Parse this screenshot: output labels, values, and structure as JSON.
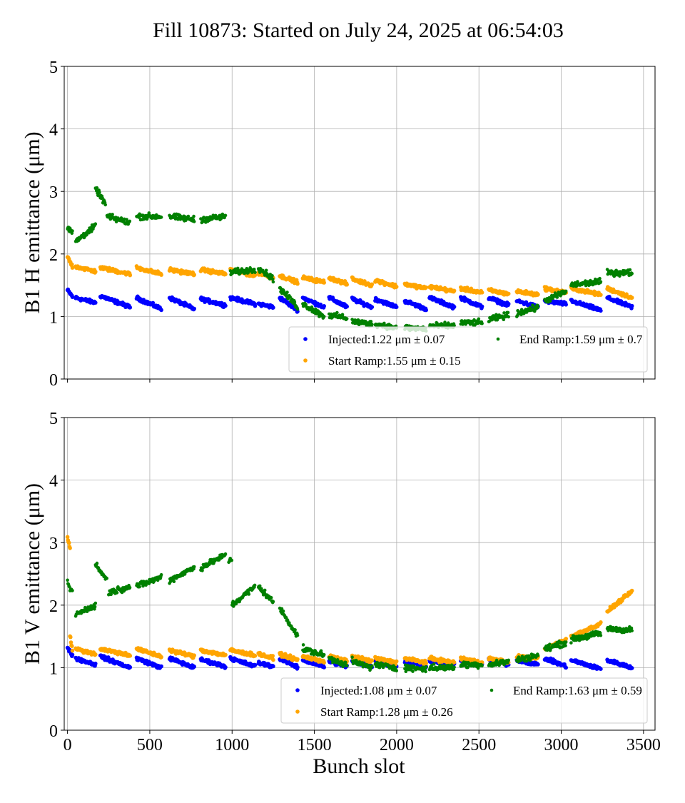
{
  "figure": {
    "title": "Fill 10873: Started on July 24, 2025 at 06:54:03",
    "xlabel": "Bunch slot"
  },
  "colors": {
    "injected": "#0000ff",
    "start_ramp": "#ffa500",
    "end_ramp": "#008000",
    "grid": "#b0b0b0"
  },
  "chart_data": [
    {
      "type": "scatter",
      "ylabel": "B1 H emittance (μm)",
      "xlabel": "",
      "xlim": [
        -20,
        3570
      ],
      "ylim": [
        0,
        5
      ],
      "xticks": [
        0,
        500,
        1000,
        1500,
        2000,
        2500,
        3000,
        3500
      ],
      "yticks": [
        0,
        1,
        2,
        3,
        4,
        5
      ],
      "show_xtick_labels": false,
      "grid": true,
      "legend": "lower-right",
      "series": [
        {
          "name": "Injected:1.22 μm ± 0.07",
          "color": "#0000ff",
          "trains": [
            [
              0,
              30,
              1.42,
              1.32
            ],
            [
              50,
              170,
              1.3,
              1.22
            ],
            [
              200,
              380,
              1.33,
              1.15
            ],
            [
              420,
              570,
              1.3,
              1.12
            ],
            [
              620,
              770,
              1.3,
              1.12
            ],
            [
              810,
              960,
              1.28,
              1.18
            ],
            [
              990,
              1140,
              1.3,
              1.2
            ],
            [
              1160,
              1250,
              1.2,
              1.15
            ],
            [
              1290,
              1400,
              1.3,
              1.1
            ],
            [
              1430,
              1560,
              1.3,
              1.15
            ],
            [
              1590,
              1700,
              1.3,
              1.15
            ],
            [
              1730,
              1850,
              1.28,
              1.15
            ],
            [
              1870,
              2000,
              1.28,
              1.15
            ],
            [
              2050,
              2180,
              1.25,
              1.12
            ],
            [
              2200,
              2350,
              1.3,
              1.15
            ],
            [
              2390,
              2520,
              1.3,
              1.15
            ],
            [
              2560,
              2680,
              1.3,
              1.18
            ],
            [
              2730,
              2860,
              1.25,
              1.15
            ],
            [
              2900,
              3030,
              1.25,
              1.2
            ],
            [
              3060,
              3240,
              1.25,
              1.1
            ],
            [
              3280,
              3430,
              1.3,
              1.15
            ]
          ]
        },
        {
          "name": "Start Ramp:1.55 μm ± 0.15",
          "color": "#ffa500",
          "trains": [
            [
              0,
              30,
              1.95,
              1.8
            ],
            [
              50,
              170,
              1.8,
              1.72
            ],
            [
              200,
              380,
              1.78,
              1.68
            ],
            [
              420,
              570,
              1.78,
              1.68
            ],
            [
              620,
              770,
              1.75,
              1.68
            ],
            [
              810,
              960,
              1.75,
              1.68
            ],
            [
              990,
              1140,
              1.75,
              1.65
            ],
            [
              1160,
              1250,
              1.7,
              1.62
            ],
            [
              1290,
              1400,
              1.65,
              1.55
            ],
            [
              1430,
              1560,
              1.62,
              1.55
            ],
            [
              1590,
              1700,
              1.62,
              1.52
            ],
            [
              1730,
              1850,
              1.6,
              1.5
            ],
            [
              1870,
              2000,
              1.58,
              1.48
            ],
            [
              2050,
              2180,
              1.52,
              1.45
            ],
            [
              2200,
              2350,
              1.48,
              1.4
            ],
            [
              2390,
              2520,
              1.45,
              1.38
            ],
            [
              2560,
              2680,
              1.42,
              1.36
            ],
            [
              2730,
              2860,
              1.4,
              1.35
            ],
            [
              2900,
              3030,
              1.45,
              1.38
            ],
            [
              3060,
              3240,
              1.45,
              1.35
            ],
            [
              3280,
              3430,
              1.45,
              1.3
            ]
          ]
        },
        {
          "name": "End Ramp:1.59 μm ± 0.7",
          "color": "#008000",
          "trains": [
            [
              0,
              30,
              2.4,
              2.35
            ],
            [
              50,
              170,
              2.2,
              2.45
            ],
            [
              170,
              230,
              3.05,
              2.8
            ],
            [
              240,
              380,
              2.6,
              2.5
            ],
            [
              420,
              570,
              2.6,
              2.6
            ],
            [
              620,
              770,
              2.6,
              2.55
            ],
            [
              810,
              960,
              2.55,
              2.6
            ],
            [
              990,
              1140,
              1.7,
              1.75
            ],
            [
              1160,
              1250,
              1.78,
              1.6
            ],
            [
              1290,
              1400,
              1.45,
              1.15
            ],
            [
              1430,
              1560,
              1.2,
              1.0
            ],
            [
              1590,
              1700,
              1.02,
              0.98
            ],
            [
              1730,
              1850,
              0.92,
              0.88
            ],
            [
              1870,
              2000,
              0.88,
              0.82
            ],
            [
              2050,
              2180,
              0.82,
              0.8
            ],
            [
              2200,
              2350,
              0.85,
              0.85
            ],
            [
              2390,
              2520,
              0.9,
              0.9
            ],
            [
              2560,
              2680,
              0.95,
              1.02
            ],
            [
              2730,
              2860,
              1.05,
              1.15
            ],
            [
              2900,
              3030,
              1.25,
              1.4
            ],
            [
              3060,
              3240,
              1.5,
              1.56
            ],
            [
              3280,
              3430,
              1.7,
              1.7
            ]
          ]
        }
      ]
    },
    {
      "type": "scatter",
      "ylabel": "B1 V emittance (μm)",
      "xlabel": "Bunch slot",
      "xlim": [
        -20,
        3570
      ],
      "ylim": [
        0,
        5
      ],
      "xticks": [
        0,
        500,
        1000,
        1500,
        2000,
        2500,
        3000,
        3500
      ],
      "yticks": [
        0,
        1,
        2,
        3,
        4,
        5
      ],
      "show_xtick_labels": true,
      "grid": true,
      "legend": "lower-right",
      "series": [
        {
          "name": "Injected:1.08 μm ± 0.07",
          "color": "#0000ff",
          "trains": [
            [
              0,
              30,
              1.32,
              1.2
            ],
            [
              50,
              170,
              1.15,
              1.05
            ],
            [
              200,
              380,
              1.18,
              1.0
            ],
            [
              420,
              570,
              1.15,
              1.0
            ],
            [
              620,
              770,
              1.15,
              1.0
            ],
            [
              810,
              960,
              1.13,
              1.02
            ],
            [
              990,
              1140,
              1.15,
              1.02
            ],
            [
              1160,
              1250,
              1.08,
              1.02
            ],
            [
              1290,
              1400,
              1.15,
              1.0
            ],
            [
              1430,
              1560,
              1.12,
              1.02
            ],
            [
              1590,
              1700,
              1.1,
              1.02
            ],
            [
              1730,
              1850,
              1.1,
              1.02
            ],
            [
              1870,
              2000,
              1.1,
              1.02
            ],
            [
              2050,
              2180,
              1.1,
              1.02
            ],
            [
              2200,
              2350,
              1.12,
              1.05
            ],
            [
              2390,
              2520,
              1.12,
              1.05
            ],
            [
              2560,
              2680,
              1.12,
              1.05
            ],
            [
              2730,
              2860,
              1.12,
              1.05
            ],
            [
              2900,
              3030,
              1.15,
              1.02
            ],
            [
              3060,
              3240,
              1.12,
              0.98
            ],
            [
              3280,
              3430,
              1.12,
              1.0
            ]
          ]
        },
        {
          "name": "Start Ramp:1.28 μm ± 0.26",
          "color": "#ffa500",
          "trains": [
            [
              0,
              15,
              3.1,
              2.9
            ],
            [
              15,
              30,
              1.5,
              1.3
            ],
            [
              50,
              170,
              1.3,
              1.22
            ],
            [
              200,
              380,
              1.3,
              1.2
            ],
            [
              420,
              570,
              1.3,
              1.18
            ],
            [
              620,
              770,
              1.28,
              1.18
            ],
            [
              810,
              960,
              1.28,
              1.2
            ],
            [
              990,
              1140,
              1.28,
              1.2
            ],
            [
              1160,
              1250,
              1.22,
              1.15
            ],
            [
              1290,
              1400,
              1.22,
              1.12
            ],
            [
              1430,
              1560,
              1.18,
              1.1
            ],
            [
              1590,
              1700,
              1.18,
              1.1
            ],
            [
              1730,
              1850,
              1.18,
              1.1
            ],
            [
              1870,
              2000,
              1.15,
              1.08
            ],
            [
              2050,
              2180,
              1.15,
              1.08
            ],
            [
              2200,
              2350,
              1.15,
              1.08
            ],
            [
              2390,
              2520,
              1.15,
              1.08
            ],
            [
              2560,
              2680,
              1.15,
              1.08
            ],
            [
              2730,
              2860,
              1.18,
              1.15
            ],
            [
              2900,
              3030,
              1.3,
              1.45
            ],
            [
              3060,
              3240,
              1.5,
              1.7
            ],
            [
              3280,
              3430,
              1.9,
              2.22
            ]
          ]
        },
        {
          "name": "End Ramp:1.63 μm ± 0.59",
          "color": "#008000",
          "trains": [
            [
              0,
              30,
              2.35,
              2.2
            ],
            [
              50,
              170,
              1.85,
              2.0
            ],
            [
              170,
              240,
              2.65,
              2.4
            ],
            [
              250,
              380,
              2.2,
              2.3
            ],
            [
              420,
              570,
              2.3,
              2.45
            ],
            [
              620,
              770,
              2.4,
              2.6
            ],
            [
              810,
              960,
              2.6,
              2.8
            ],
            [
              980,
              1000,
              2.7,
              2.75
            ],
            [
              1000,
              1140,
              2.0,
              2.3
            ],
            [
              1160,
              1250,
              2.3,
              2.05
            ],
            [
              1290,
              1400,
              1.95,
              1.5
            ],
            [
              1430,
              1560,
              1.3,
              1.2
            ],
            [
              1590,
              1700,
              1.15,
              1.05
            ],
            [
              1730,
              1850,
              1.1,
              1.0
            ],
            [
              1870,
              2000,
              1.05,
              1.0
            ],
            [
              2050,
              2180,
              1.0,
              0.98
            ],
            [
              2200,
              2350,
              1.0,
              1.0
            ],
            [
              2390,
              2520,
              1.05,
              1.05
            ],
            [
              2560,
              2680,
              1.05,
              1.1
            ],
            [
              2730,
              2860,
              1.12,
              1.2
            ],
            [
              2900,
              3030,
              1.3,
              1.4
            ],
            [
              3060,
              3240,
              1.45,
              1.55
            ],
            [
              3280,
              3430,
              1.62,
              1.6
            ]
          ]
        }
      ]
    }
  ]
}
